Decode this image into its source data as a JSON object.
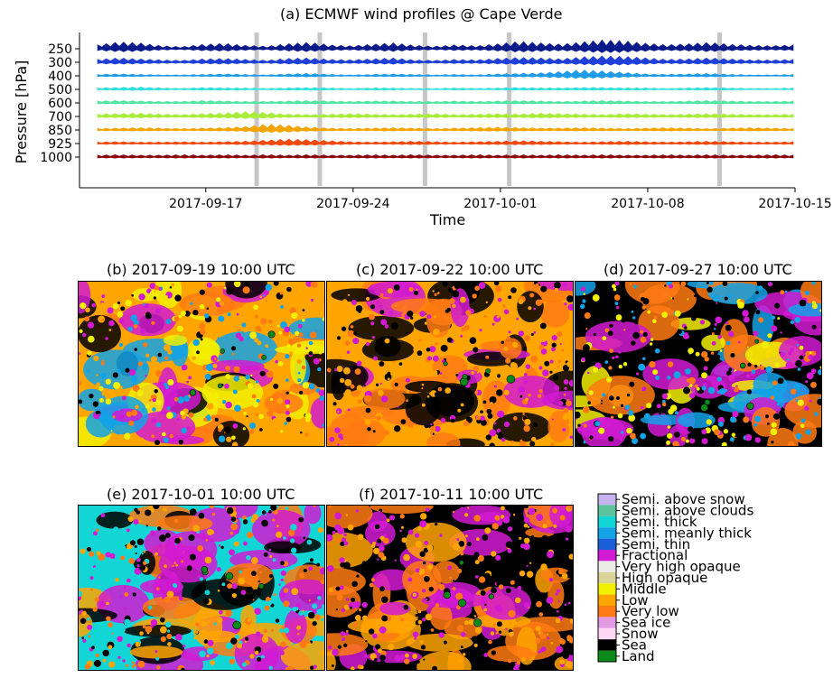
{
  "figure": {
    "colors": {
      "axis": "#000000",
      "highlight_bar": "#bdbdbd"
    }
  },
  "chart_data": [
    {
      "id": "a",
      "type": "line",
      "title": "(a) ECMWF  wind profiles @ Cape Verde",
      "xlabel": "Time",
      "ylabel": "Pressure [hPa]",
      "x_range": [
        "2017-09-11",
        "2017-10-15"
      ],
      "x_ticks": [
        "2017-09-17",
        "2017-09-24",
        "2017-10-01",
        "2017-10-08",
        "2017-10-15"
      ],
      "y_ticks": [
        "250",
        "300",
        "400",
        "500",
        "600",
        "700",
        "850",
        "925",
        "1000"
      ],
      "grid": false,
      "highlighted_times": [
        "2017-09-19 10:00",
        "2017-09-22 10:00",
        "2017-09-27 10:00",
        "2017-10-01 10:00",
        "2017-10-11 10:00"
      ],
      "series": [
        {
          "level": "250",
          "color": "#0a1a8a",
          "wind_envelope": [
            8,
            14,
            12,
            6,
            4,
            9,
            11,
            7,
            5,
            10,
            13,
            8,
            6,
            9,
            12,
            7,
            5,
            8,
            6,
            10,
            15,
            12,
            9,
            14,
            18,
            16,
            11,
            8,
            10,
            13,
            9,
            7,
            6,
            8
          ]
        },
        {
          "level": "300",
          "color": "#1f3fd6",
          "wind_envelope": [
            6,
            9,
            7,
            5,
            4,
            7,
            8,
            6,
            4,
            8,
            9,
            6,
            5,
            7,
            9,
            5,
            4,
            6,
            5,
            8,
            10,
            9,
            7,
            11,
            13,
            12,
            9,
            6,
            7,
            9,
            7,
            5,
            5,
            6
          ]
        },
        {
          "level": "400",
          "color": "#1f9be8",
          "wind_envelope": [
            3,
            4,
            3,
            2,
            2,
            3,
            4,
            3,
            2,
            4,
            5,
            3,
            2,
            3,
            4,
            3,
            2,
            3,
            2,
            4,
            5,
            6,
            9,
            12,
            10,
            7,
            4,
            3,
            4,
            5,
            3,
            2,
            2,
            3
          ]
        },
        {
          "level": "500",
          "color": "#2fe0e0",
          "wind_envelope": [
            3,
            4,
            5,
            3,
            2,
            4,
            3,
            3,
            2,
            3,
            4,
            3,
            2,
            3,
            3,
            2,
            2,
            3,
            2,
            3,
            4,
            3,
            3,
            4,
            4,
            3,
            3,
            2,
            3,
            4,
            3,
            2,
            2,
            3
          ]
        },
        {
          "level": "600",
          "color": "#4fe6a0",
          "wind_envelope": [
            4,
            5,
            4,
            3,
            3,
            5,
            4,
            3,
            3,
            4,
            5,
            4,
            3,
            4,
            4,
            3,
            3,
            4,
            3,
            4,
            5,
            4,
            3,
            4,
            5,
            4,
            3,
            3,
            4,
            5,
            4,
            3,
            3,
            4
          ]
        },
        {
          "level": "700",
          "color": "#a8ec3c",
          "wind_envelope": [
            5,
            6,
            7,
            5,
            4,
            6,
            7,
            10,
            8,
            5,
            4,
            5,
            6,
            5,
            4,
            5,
            6,
            4,
            5,
            6,
            5,
            7,
            6,
            5,
            4,
            6,
            5,
            4,
            5,
            6,
            5,
            4,
            4,
            5
          ]
        },
        {
          "level": "850",
          "color": "#f2a400",
          "wind_envelope": [
            3,
            4,
            5,
            4,
            3,
            4,
            5,
            7,
            12,
            10,
            6,
            4,
            3,
            4,
            5,
            4,
            3,
            4,
            5,
            6,
            5,
            4,
            4,
            5,
            4,
            3,
            4,
            5,
            4,
            3,
            4,
            5,
            4,
            3
          ]
        },
        {
          "level": "925",
          "color": "#f04a10",
          "wind_envelope": [
            3,
            4,
            3,
            3,
            4,
            3,
            4,
            5,
            7,
            9,
            8,
            6,
            4,
            3,
            4,
            5,
            4,
            3,
            4,
            5,
            6,
            5,
            4,
            3,
            4,
            5,
            4,
            3,
            4,
            5,
            4,
            3,
            3,
            4
          ]
        },
        {
          "level": "1000",
          "color": "#8a0a0a",
          "wind_envelope": [
            4,
            5,
            4,
            4,
            5,
            4,
            5,
            4,
            5,
            4,
            5,
            4,
            4,
            5,
            4,
            5,
            4,
            4,
            5,
            4,
            5,
            4,
            5,
            4,
            5,
            4,
            4,
            5,
            4,
            5,
            4,
            4,
            5,
            4
          ]
        }
      ]
    },
    {
      "id": "b",
      "type": "heatmap",
      "title": "(b) 2017-09-19 10:00 UTC",
      "dominant_classes": [
        "Low",
        "Semi. meanly thick",
        "Very low",
        "Fractional",
        "Sea",
        "Middle",
        "Land"
      ]
    },
    {
      "id": "c",
      "type": "heatmap",
      "title": "(c) 2017-09-22 10:00 UTC",
      "dominant_classes": [
        "Low",
        "Very low",
        "Fractional",
        "Sea",
        "Land"
      ]
    },
    {
      "id": "d",
      "type": "heatmap",
      "title": "(d) 2017-09-27 10:00 UTC",
      "dominant_classes": [
        "Sea",
        "Fractional",
        "Very low",
        "Semi. meanly thick",
        "Middle",
        "Land"
      ]
    },
    {
      "id": "e",
      "type": "heatmap",
      "title": "(e) 2017-10-01 10:00 UTC",
      "dominant_classes": [
        "Semi. thick",
        "Very low",
        "Fractional",
        "Low",
        "Sea",
        "Land"
      ]
    },
    {
      "id": "f",
      "type": "heatmap",
      "title": "(f) 2017-10-11 10:00 UTC",
      "dominant_classes": [
        "Sea",
        "Fractional",
        "Low",
        "Very low",
        "Land"
      ]
    }
  ],
  "legend": [
    {
      "label": "Semi. above snow",
      "color": "#c6b3f0"
    },
    {
      "label": "Semi. above clouds",
      "color": "#5cc39a"
    },
    {
      "label": "Semi. thick",
      "color": "#12d6d6"
    },
    {
      "label": "Semi. meanly thick",
      "color": "#12a2e6"
    },
    {
      "label": "Semi. thin",
      "color": "#1a5ed8"
    },
    {
      "label": "Fractional",
      "color": "#d21ad2"
    },
    {
      "label": "Very high opaque",
      "color": "#ecebe8"
    },
    {
      "label": "High opaque",
      "color": "#d8d596"
    },
    {
      "label": "Middle",
      "color": "#f2f000"
    },
    {
      "label": "Low",
      "color": "#ffa500"
    },
    {
      "label": "Very low",
      "color": "#ff7a12"
    },
    {
      "label": "Sea ice",
      "color": "#e49ae0"
    },
    {
      "label": "Snow",
      "color": "#ffd6f6"
    },
    {
      "label": "Sea",
      "color": "#000000"
    },
    {
      "label": "Land",
      "color": "#0a8a18"
    }
  ]
}
